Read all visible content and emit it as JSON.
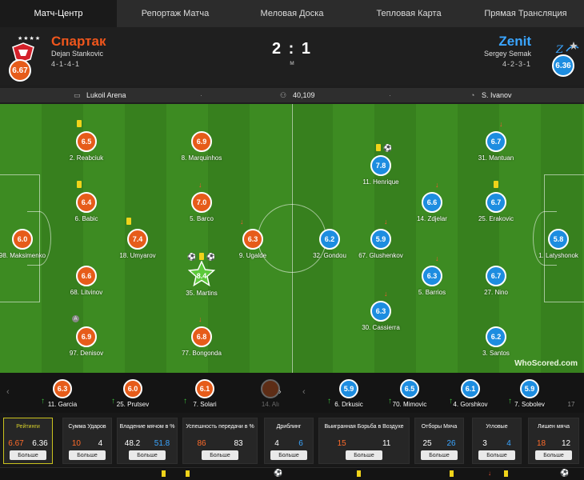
{
  "tabs": [
    "Матч-Центр",
    "Репортаж Матча",
    "Меловая Доска",
    "Тепловая Карта",
    "Прямая Трансляция"
  ],
  "header": {
    "home": {
      "name": "Спартак",
      "coach": "Dejan Stankovic",
      "formation": "4-1-4-1",
      "rating": "6.67",
      "stars": "★★★★"
    },
    "away": {
      "name": "Zenit",
      "coach": "Sergey Semak",
      "formation": "4-2-3-1",
      "rating": "6.36"
    },
    "score": "2 : 1",
    "status": "м"
  },
  "info": {
    "stadium": "Lukoil Arena",
    "attendance": "40,109",
    "referee": "S. Ivanov"
  },
  "home_players": [
    {
      "name": "98. Maksimenko",
      "rating": "6.0"
    },
    {
      "name": "2. Reabciuk",
      "rating": "6.5"
    },
    {
      "name": "6. Babic",
      "rating": "6.4"
    },
    {
      "name": "68. Litvinov",
      "rating": "6.6"
    },
    {
      "name": "97. Denisov",
      "rating": "6.9"
    },
    {
      "name": "18. Umyarov",
      "rating": "7.4"
    },
    {
      "name": "8. Marquinhos",
      "rating": "6.9"
    },
    {
      "name": "5. Barco",
      "rating": "7.0"
    },
    {
      "name": "35. Martins",
      "rating": "8.4"
    },
    {
      "name": "77. Bongonda",
      "rating": "6.8"
    },
    {
      "name": "9. Ugalde",
      "rating": "6.3"
    }
  ],
  "away_players": [
    {
      "name": "32. Gondou",
      "rating": "6.2"
    },
    {
      "name": "11. Henrique",
      "rating": "7.8"
    },
    {
      "name": "67. Glushenkov",
      "rating": "5.9"
    },
    {
      "name": "30. Cassierra",
      "rating": "6.3"
    },
    {
      "name": "14. Zdjelar",
      "rating": "6.6"
    },
    {
      "name": "5. Barrios",
      "rating": "6.3"
    },
    {
      "name": "31. Mantuan",
      "rating": "6.7"
    },
    {
      "name": "25. Erakovic",
      "rating": "6.7"
    },
    {
      "name": "27. Nino",
      "rating": "6.7"
    },
    {
      "name": "3. Santos",
      "rating": "6.2"
    },
    {
      "name": "1. Latyshonok",
      "rating": "5.8"
    }
  ],
  "bench_home": [
    {
      "name": "11. Garcia",
      "rating": "6.3"
    },
    {
      "name": "25. Prutsev",
      "rating": "6.0"
    },
    {
      "name": "7. Solari",
      "rating": "6.1"
    },
    {
      "name": "14. Alı",
      "rating": ""
    }
  ],
  "bench_away": [
    {
      "name": "6. Drkusic",
      "rating": "5.9"
    },
    {
      "name": "70. Mimovic",
      "rating": "6.5"
    },
    {
      "name": "4. Gorshkov",
      "rating": "6.1"
    },
    {
      "name": "7. Sobolev",
      "rating": "5.9"
    },
    {
      "name": "17",
      "rating": ""
    }
  ],
  "stats": [
    {
      "title": "Рейтинги",
      "home": "6.67",
      "away": "6.36",
      "btn": "Больше"
    },
    {
      "title": "Сумма Ударов",
      "home": "10",
      "away": "4",
      "btn": "Больше"
    },
    {
      "title": "Владение мячом в %",
      "home": "48.2",
      "away": "51.8",
      "btn": "Больше"
    },
    {
      "title": "Успешность передачи в %",
      "home": "86",
      "away": "83",
      "btn": "Больше"
    },
    {
      "title": "Дриблинг",
      "home": "4",
      "away": "6",
      "btn": "Больше"
    },
    {
      "title": "Выигранная Борьба в Воздухе",
      "home": "15",
      "away": "11",
      "btn": "Больше"
    },
    {
      "title": "Отборы Мяча",
      "home": "25",
      "away": "26",
      "btn": "Больше"
    },
    {
      "title": "Угловые",
      "home": "3",
      "away": "4",
      "btn": "Больше"
    },
    {
      "title": "Лишен мяча",
      "home": "18",
      "away": "12",
      "btn": "Больше"
    }
  ],
  "branding": {
    "logo": "WhoScored.com"
  },
  "colors": {
    "home": "#e65c1a",
    "away": "#1d8de0",
    "pitch": "#3d8b22"
  }
}
